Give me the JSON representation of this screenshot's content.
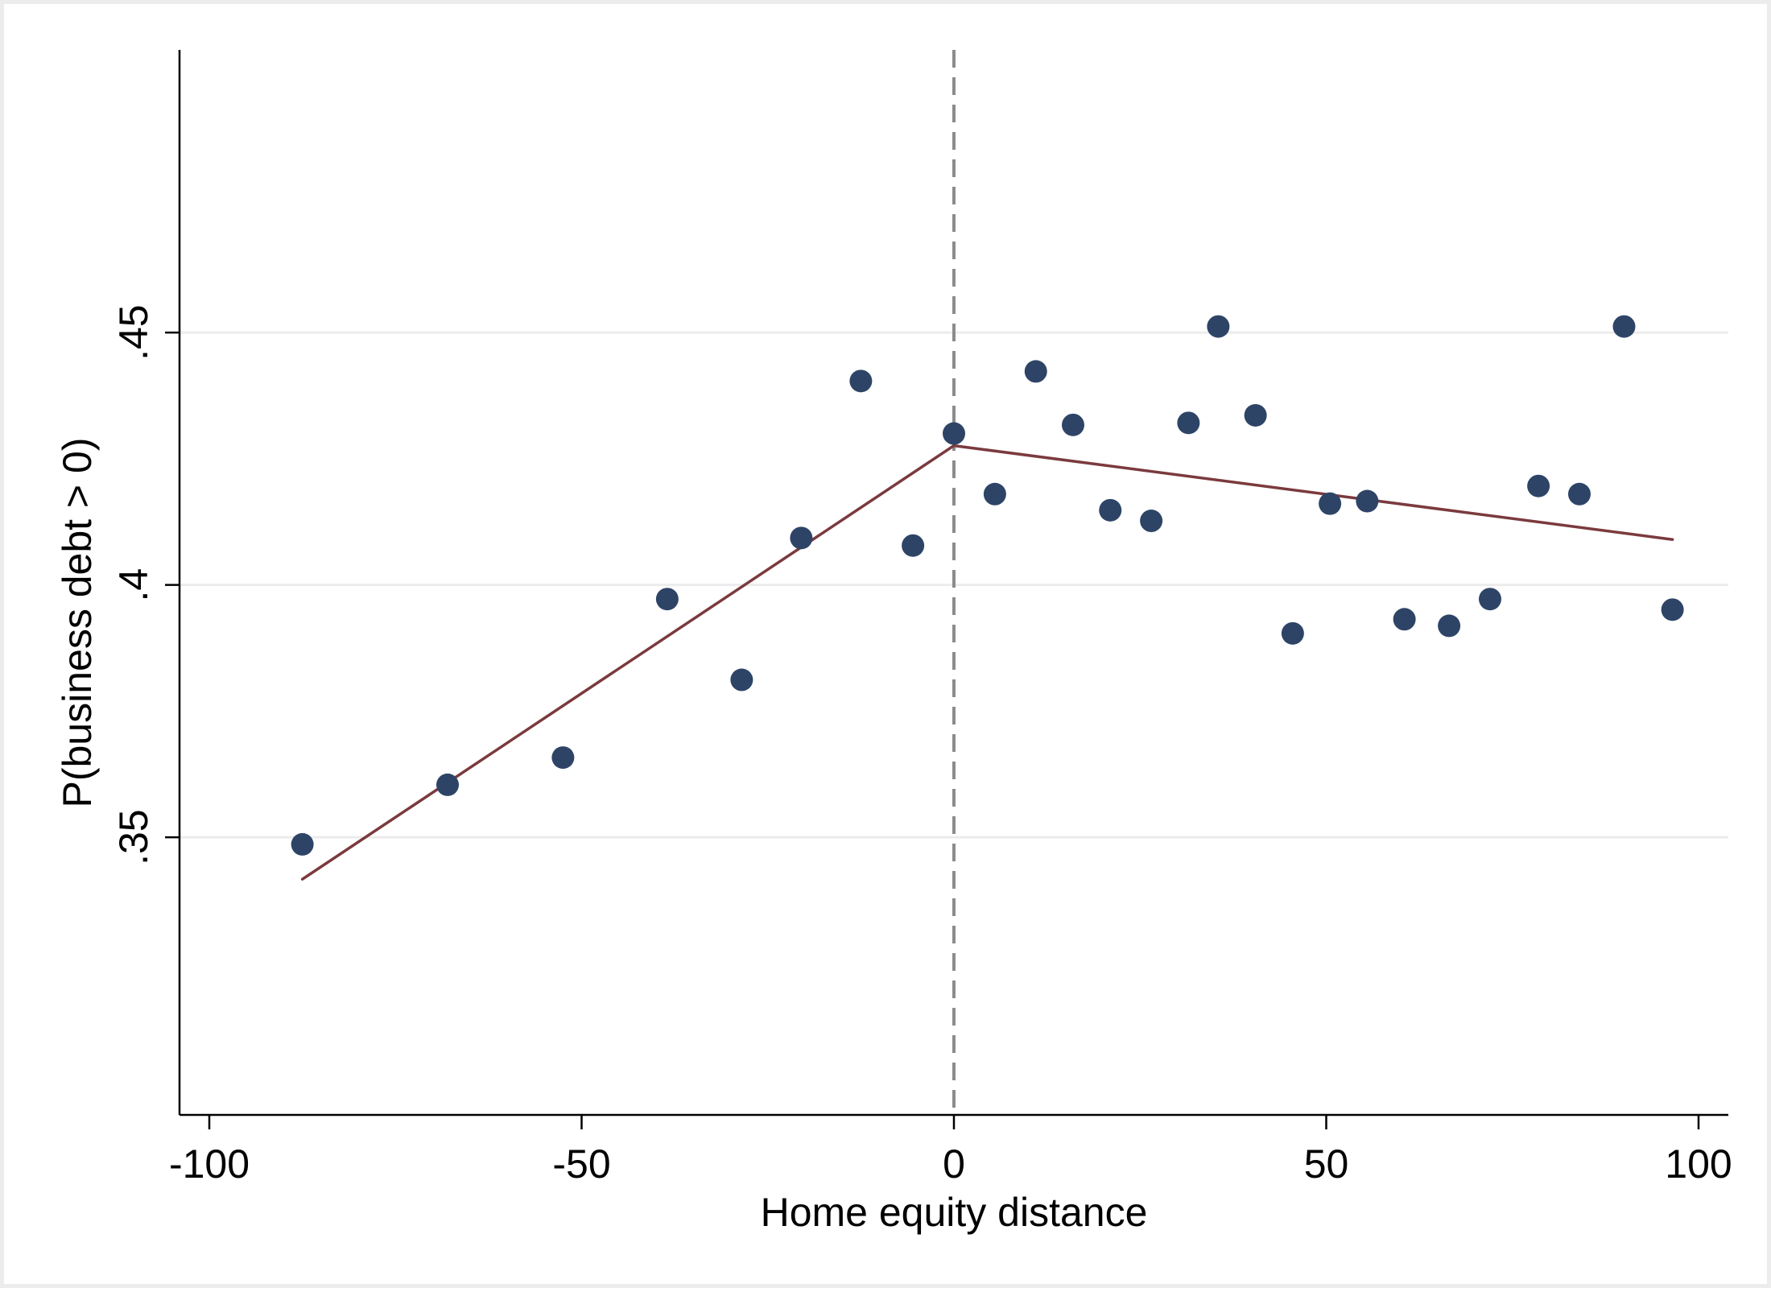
{
  "chart_data": {
    "type": "scatter",
    "title": "",
    "xlabel": "Home equity distance",
    "ylabel": "P(business debt > 0)",
    "xlim": [
      -104,
      104
    ],
    "ylim": [
      0.295,
      0.506
    ],
    "xticks": [
      -100,
      -50,
      0,
      50,
      100
    ],
    "xtick_labels": [
      "-100",
      "-50",
      "0",
      "50",
      "100"
    ],
    "yticks": [
      0.35,
      0.4,
      0.45
    ],
    "ytick_labels": [
      ".35",
      ".4",
      ".45"
    ],
    "grid": "horizontal",
    "cutoff_x": 0,
    "colors": {
      "points": "#2e4467",
      "fit_line": "#7b3a3e",
      "cutoff_line": "#8c8c8c",
      "grid": "#ececec",
      "axis": "#000000"
    },
    "series": [
      {
        "type": "scatter",
        "x": [
          -87.5,
          -68,
          -52.5,
          -38.5,
          -28.5,
          -20.5,
          -12.5,
          -5.5,
          0,
          5.5,
          11,
          16,
          21,
          26.5,
          31.5,
          35.5,
          40.5,
          45.5,
          50.5,
          55.5,
          60.5,
          66.5,
          72,
          78.5,
          84,
          90,
          96.5
        ],
        "y": [
          0.3486,
          0.3604,
          0.3658,
          0.3972,
          0.3812,
          0.4093,
          0.4404,
          0.4078,
          0.43,
          0.418,
          0.4423,
          0.4317,
          0.4148,
          0.4127,
          0.4321,
          0.4512,
          0.4336,
          0.3904,
          0.4161,
          0.4166,
          0.3932,
          0.3919,
          0.3972,
          0.4196,
          0.418,
          0.4512,
          0.3951
        ]
      },
      {
        "type": "line",
        "segments": [
          {
            "x": [
              -87.5,
              0
            ],
            "y": [
              0.3417,
              0.4276
            ]
          },
          {
            "x": [
              0,
              96.5
            ],
            "y": [
              0.4276,
              0.409
            ]
          }
        ]
      }
    ]
  }
}
